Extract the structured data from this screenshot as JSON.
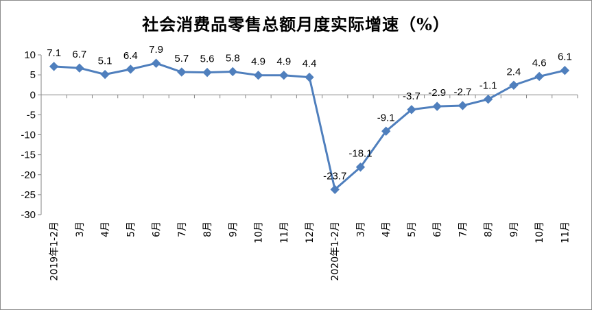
{
  "chart_data": {
    "type": "line",
    "title": "社会消费品零售总额月度实际增速（%）",
    "categories": [
      "2019年1-2月",
      "3月",
      "4月",
      "5月",
      "6月",
      "7月",
      "8月",
      "9月",
      "10月",
      "11月",
      "12月",
      "2020年1-2月",
      "3月",
      "4月",
      "5月",
      "6月",
      "7月",
      "8月",
      "9月",
      "10月",
      "11月"
    ],
    "series": [
      {
        "values": [
          7.1,
          6.7,
          5.1,
          6.4,
          7.9,
          5.7,
          5.6,
          5.8,
          4.9,
          4.9,
          4.4,
          -23.7,
          -18.1,
          -9.1,
          -3.7,
          -2.9,
          -2.7,
          -1.1,
          2.4,
          4.6,
          6.1
        ],
        "labels": [
          "7.1",
          "6.7",
          "5.1",
          "6.4",
          "7.9",
          "5.7",
          "5.6",
          "5.8",
          "4.9",
          "4.9",
          "4.4",
          "-23.7",
          "-18.1",
          "-9.1",
          "-3.7",
          "-2.9",
          "-2.7",
          "-1.1",
          "2.4",
          "4.6",
          "6.1"
        ],
        "color": "#4f7fbd"
      }
    ],
    "yticks": [
      10,
      5,
      0,
      -5,
      -10,
      -15,
      -20,
      -25,
      -30
    ],
    "ylim": [
      -30,
      10
    ],
    "grid": false,
    "legend": "none",
    "marker": "diamond"
  }
}
